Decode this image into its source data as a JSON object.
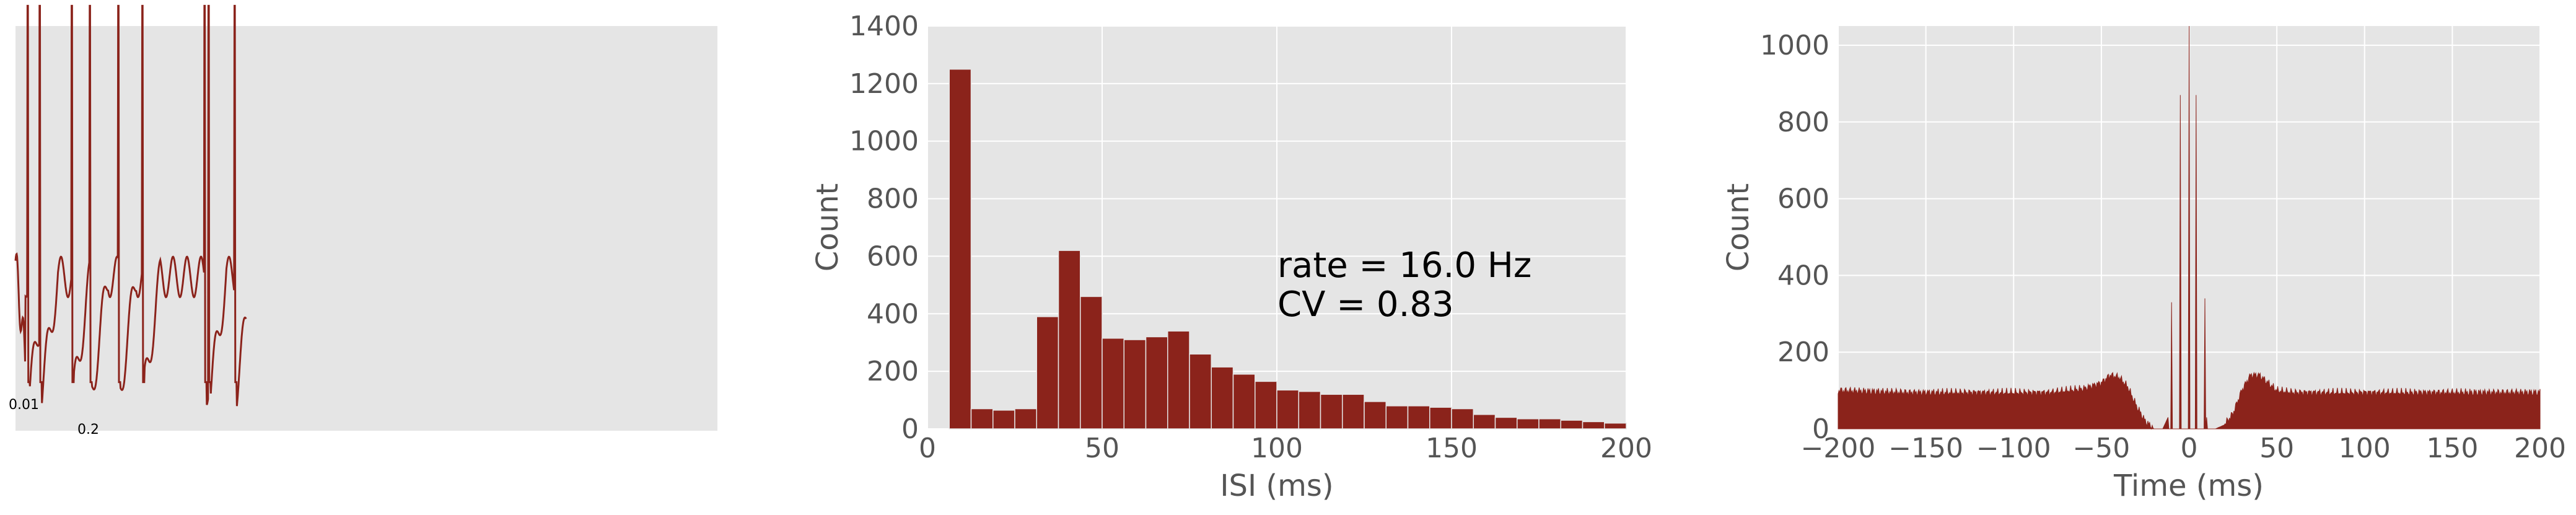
{
  "colors": {
    "bar": "#8b231b",
    "panel_bg": "#e5e5e5",
    "grid": "#ffffff",
    "tick_text": "#555555"
  },
  "chart_data": [
    {
      "type": "line",
      "title": "",
      "xlabel": "",
      "ylabel": "",
      "scale_bar": {
        "y_label": "0.01",
        "x_label": "0.2"
      },
      "axes_visible": false,
      "grid": false,
      "series": [
        {
          "trace": "membrane-voltage",
          "spike_times": [
            0.6,
            1.2,
            2.8,
            3.7,
            5.1,
            6.3,
            9.4,
            9.6,
            10.9
          ],
          "duration": 11.5
        }
      ]
    },
    {
      "type": "bar",
      "title": "",
      "xlabel": "ISI (ms)",
      "ylabel": "Count",
      "xlim": [
        0,
        200
      ],
      "ylim": [
        0,
        1400
      ],
      "xticks": [
        "0",
        "50",
        "100",
        "150",
        "200"
      ],
      "yticks": [
        "0",
        "200",
        "400",
        "600",
        "800",
        "1000",
        "1200",
        "1400"
      ],
      "bin_width": 6.25,
      "values": [
        0,
        1250,
        70,
        65,
        70,
        390,
        620,
        460,
        315,
        310,
        320,
        340,
        260,
        215,
        190,
        165,
        135,
        130,
        120,
        120,
        95,
        80,
        80,
        75,
        70,
        50,
        40,
        35,
        35,
        30,
        25,
        20
      ],
      "grid": true,
      "annotations": [
        "rate = 16.0 Hz",
        "CV = 0.83"
      ]
    },
    {
      "type": "area",
      "title": "",
      "xlabel": "Time (ms)",
      "ylabel": "Count",
      "xlim": [
        -200,
        200
      ],
      "ylim": [
        0,
        1050
      ],
      "xticks": [
        "−200",
        "−150",
        "−100",
        "−50",
        "0",
        "50",
        "100",
        "150",
        "200"
      ],
      "yticks": [
        "0",
        "200",
        "400",
        "600",
        "800",
        "1000"
      ],
      "grid": true,
      "x": [
        -200,
        -160,
        -120,
        -80,
        -60,
        -50,
        -45,
        -40,
        -35,
        -30,
        -25,
        -20,
        -15,
        -12,
        -10,
        -9,
        -8,
        -7,
        -5,
        -4,
        -3,
        -2,
        -1,
        0,
        1,
        2,
        3,
        4,
        5,
        6,
        7,
        8,
        9,
        10,
        12,
        15,
        20,
        25,
        30,
        35,
        40,
        45,
        50,
        60,
        80,
        120,
        160,
        200
      ],
      "values": [
        100,
        95,
        95,
        95,
        105,
        120,
        140,
        135,
        110,
        60,
        20,
        0,
        0,
        30,
        330,
        0,
        0,
        0,
        870,
        0,
        0,
        0,
        0,
        1060,
        0,
        0,
        0,
        870,
        0,
        0,
        0,
        0,
        340,
        30,
        0,
        0,
        10,
        40,
        100,
        140,
        140,
        120,
        100,
        95,
        95,
        95,
        95,
        95
      ]
    }
  ]
}
